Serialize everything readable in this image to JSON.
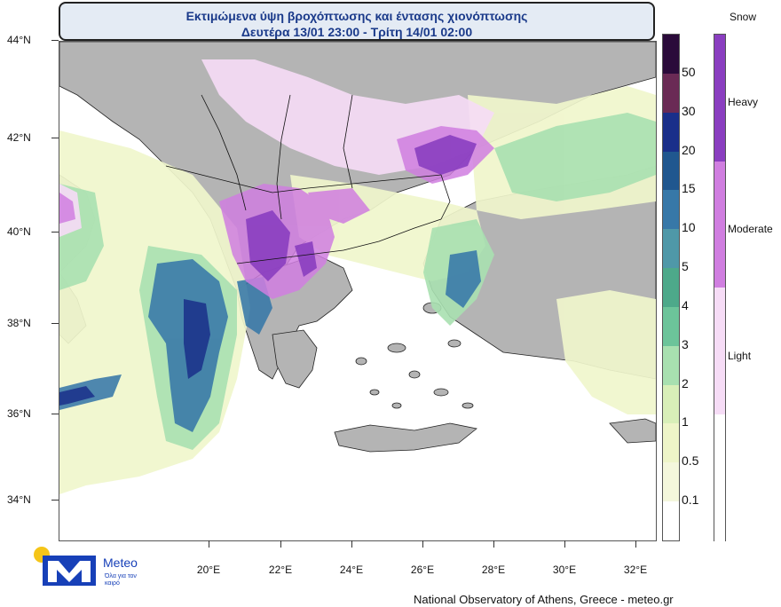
{
  "title": {
    "line1": "Εκτιμώμενα ύψη βροχόπτωσης και έντασης χιονόπτωσης",
    "line2": "Δευτέρα 13/01 23:00 - Τρίτη 14/01 02:00"
  },
  "lat_labels": [
    "44°N",
    "42°N",
    "40°N",
    "38°N",
    "36°N",
    "34°N"
  ],
  "lon_labels": [
    "20°E",
    "22°E",
    "24°E",
    "26°E",
    "28°E",
    "30°E",
    "32°E"
  ],
  "rain_scale": {
    "labels": [
      "50",
      "30",
      "20",
      "15",
      "10",
      "5",
      "4",
      "3",
      "2",
      "1",
      "0.5",
      "0.1"
    ],
    "colors": [
      "#2a0a3a",
      "#6a2a55",
      "#1a2f8a",
      "#20578f",
      "#3778a8",
      "#4f98a8",
      "#4da98a",
      "#6cc49a",
      "#a8e0b0",
      "#d8efb8",
      "#eef5c8",
      "#f4f7dc",
      "#ffffff"
    ]
  },
  "snow_scale": {
    "title": "Snow",
    "labels": [
      "Heavy",
      "Moderate",
      "Light"
    ],
    "colors": [
      "#8a3ec0",
      "#d07ee0",
      "#f6dcf6",
      "#ffffff"
    ]
  },
  "colors": {
    "land": "#b4b4b4",
    "sea": "#ffffff",
    "title_text": "#1a3a8a",
    "logo_blue": "#1740b8",
    "logo_sun": "#f5c518"
  },
  "logo": {
    "name": "Meteo",
    "tagline": "Όλα για τον καιρό"
  },
  "footer": "National Observatory of Athens, Greece - meteo.gr"
}
